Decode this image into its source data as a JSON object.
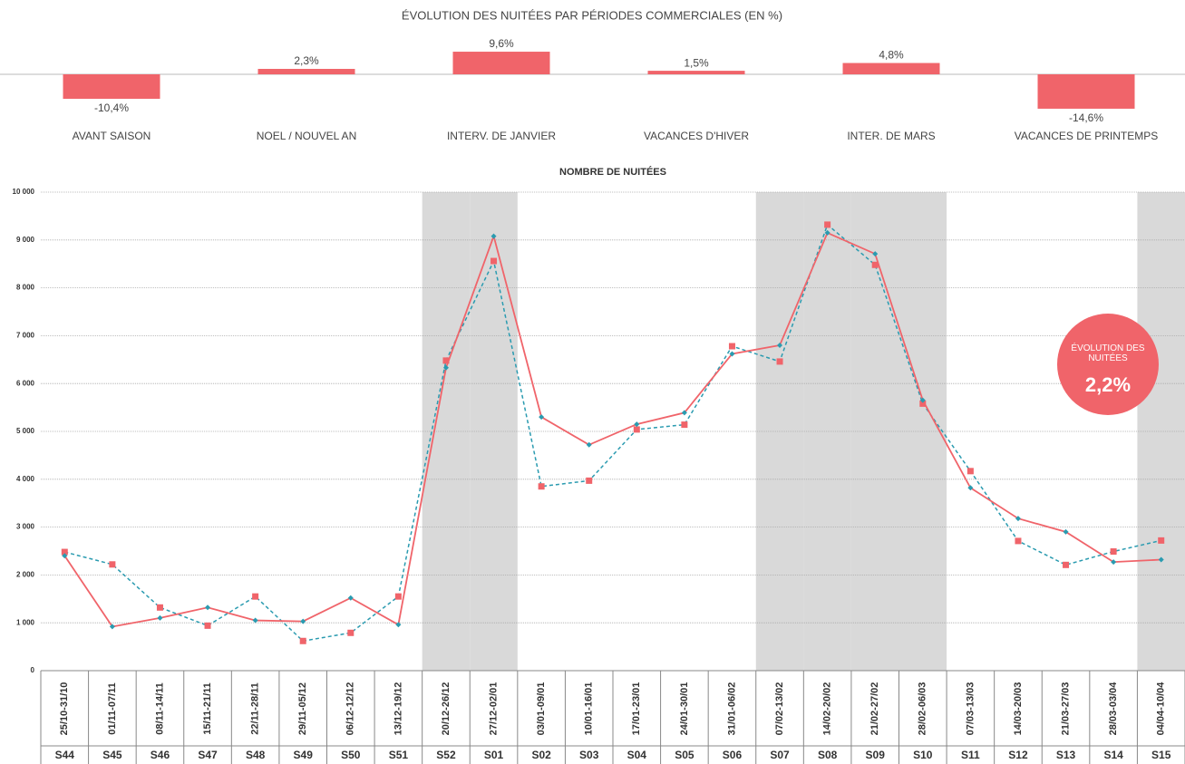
{
  "chart_data": [
    {
      "type": "bar",
      "title": "ÉVOLUTION DES NUITÉES PAR PÉRIODES COMMERCIALES (EN %)",
      "categories": [
        "AVANT SAISON",
        "NOEL / NOUVEL AN",
        "INTERV. DE JANVIER",
        "VACANCES D'HIVER",
        "INTER. DE MARS",
        "VACANCES DE PRINTEMPS"
      ],
      "values": [
        -10.4,
        2.3,
        9.6,
        1.5,
        4.8,
        -14.6
      ],
      "value_labels": [
        "-10,4%",
        "2,3%",
        "9,6%",
        "1,5%",
        "4,8%",
        "-14,6%"
      ],
      "color": "#f0646a"
    },
    {
      "type": "line",
      "title": "NOMBRE DE NUITÉES",
      "categories": [
        "S44",
        "S45",
        "S46",
        "S47",
        "S48",
        "S49",
        "S50",
        "S51",
        "S52",
        "S01",
        "S02",
        "S03",
        "S04",
        "S05",
        "S06",
        "S07",
        "S08",
        "S09",
        "S10",
        "S11",
        "S12",
        "S13",
        "S14",
        "S15"
      ],
      "dates": [
        "25/10-31/10",
        "01/11-07/11",
        "08/11-14/11",
        "15/11-21/11",
        "22/11-28/11",
        "29/11-05/12",
        "06/12-12/12",
        "13/12-19/12",
        "20/12-26/12",
        "27/12-02/01",
        "03/01-09/01",
        "10/01-16/01",
        "17/01-23/01",
        "24/01-30/01",
        "31/01-06/02",
        "07/02-13/02",
        "14/02-20/02",
        "21/02-27/02",
        "28/02-06/03",
        "07/03-13/03",
        "14/03-20/03",
        "21/03-27/03",
        "28/03-03/04",
        "04/04-10/04"
      ],
      "shaded": [
        "S52",
        "S01",
        "S07",
        "S08",
        "S09",
        "S10",
        "S15"
      ],
      "series": [
        {
          "color": "#2a9bb0",
          "marker_color": "#f0646a",
          "dash": true,
          "values": [
            2480,
            2220,
            1320,
            940,
            1550,
            620,
            790,
            1550,
            6480,
            8560,
            3850,
            3970,
            5040,
            5140,
            6780,
            6460,
            9320,
            8480,
            5580,
            4170,
            2710,
            2210,
            2490,
            2720
          ]
        },
        {
          "color": "#f0646a",
          "marker_color": "#2a9bb0",
          "dash": false,
          "values": [
            2400,
            920,
            1100,
            1320,
            1050,
            1030,
            1520,
            960,
            6330,
            9080,
            5300,
            4720,
            5150,
            5390,
            6620,
            6800,
            9150,
            8710,
            5650,
            3820,
            3180,
            2900,
            2270,
            2320
          ]
        }
      ],
      "ylim": [
        0,
        10000
      ],
      "yticks": [
        0,
        {
          "value": 1000,
          "label": "1 000"
        },
        {
          "value": 2000,
          "label": "2 000"
        },
        {
          "value": 3000,
          "label": "3 000"
        },
        {
          "value": 4000,
          "label": "4 000"
        },
        {
          "value": 5000,
          "label": "5 000"
        },
        {
          "value": 6000,
          "label": "6 000"
        },
        {
          "value": 7000,
          "label": "7 000"
        },
        {
          "value": 8000,
          "label": "8 000"
        },
        {
          "value": 9000,
          "label": "9 000"
        },
        {
          "value": 10000,
          "label": "10 000"
        }
      ],
      "grid": true,
      "badge": {
        "label": "ÉVOLUTION DES NUITÉES",
        "value": 2.2,
        "value_label": "2,2%",
        "color": "#f0646a"
      }
    }
  ]
}
